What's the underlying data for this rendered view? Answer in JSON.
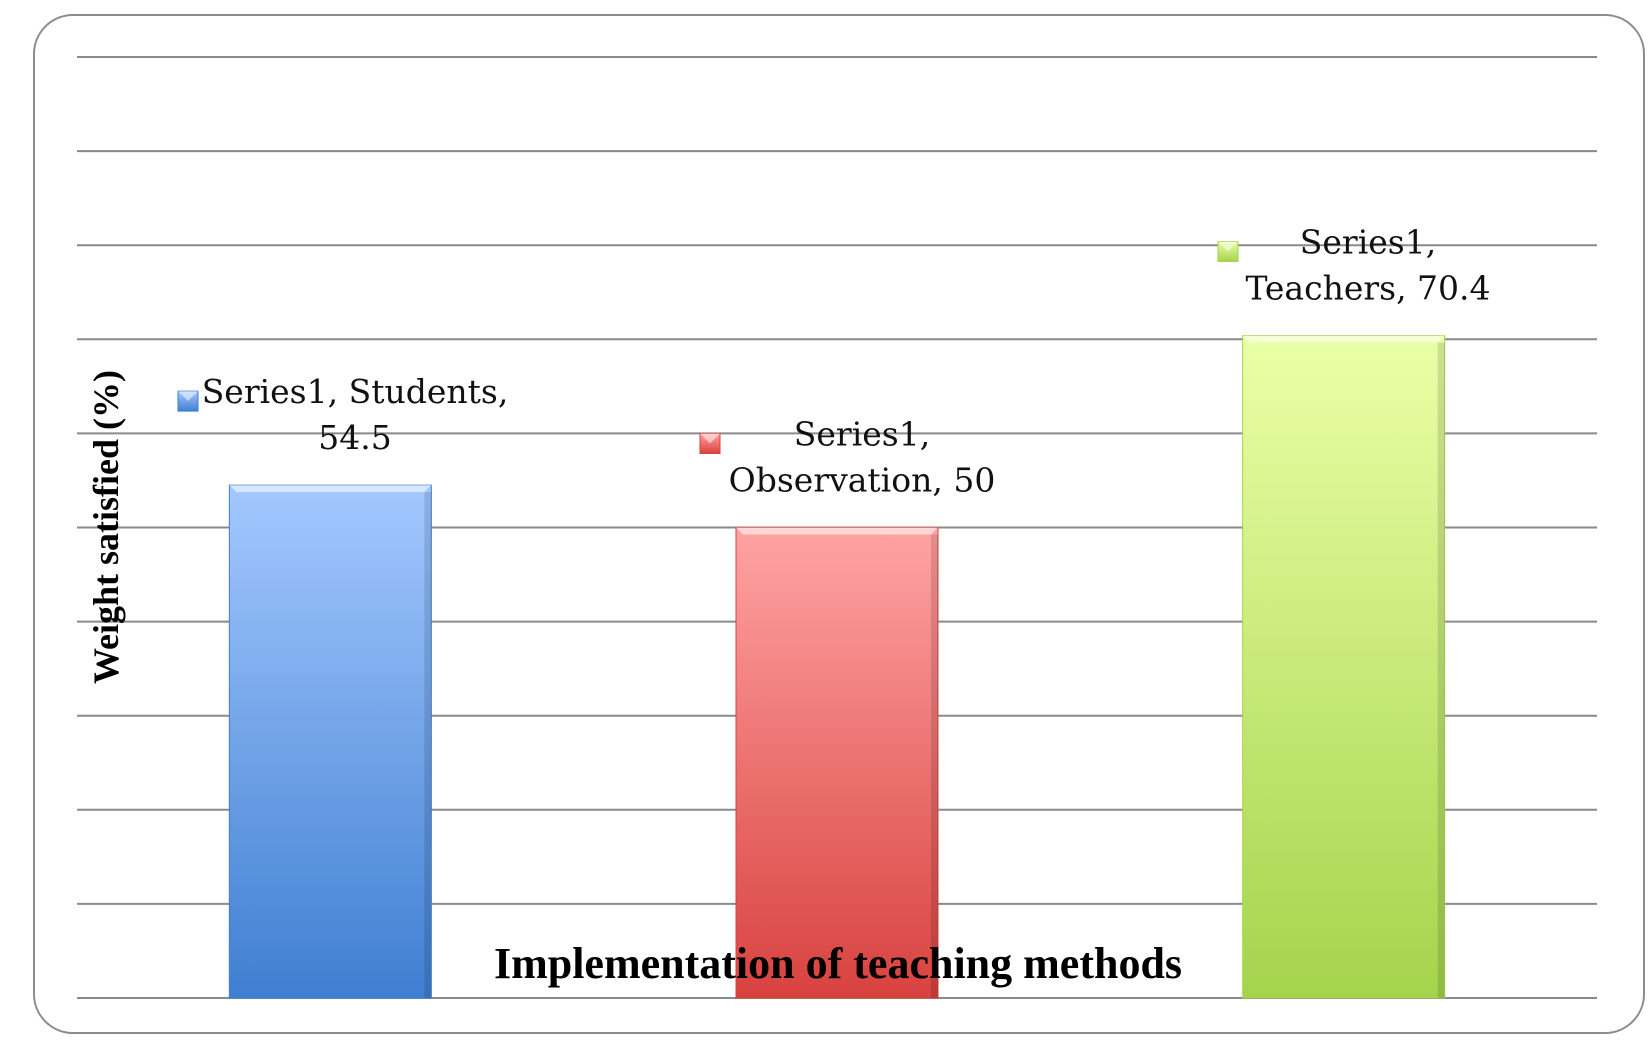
{
  "chart_data": {
    "type": "bar",
    "categories": [
      "Students",
      "Observation",
      "Teachers"
    ],
    "series": [
      {
        "name": "Series1",
        "values": [
          54.5,
          50,
          70.4
        ]
      }
    ],
    "data_labels": [
      [
        "Series1, Students,",
        "54.5"
      ],
      [
        "Series1,",
        "Observation, 50"
      ],
      [
        "Series1,",
        "Teachers, 70.4"
      ]
    ],
    "xlabel": "Implementation of teaching methods",
    "ylabel": "Weight satisfied (%)",
    "ylim": [
      0,
      100
    ],
    "grid": true,
    "colors": {
      "Students": [
        "#a4c8ff",
        "#3f7fd1"
      ],
      "Observation": [
        "#ffa3a3",
        "#d8423f"
      ],
      "Teachers": [
        "#eaffa6",
        "#a5d44c"
      ]
    }
  }
}
